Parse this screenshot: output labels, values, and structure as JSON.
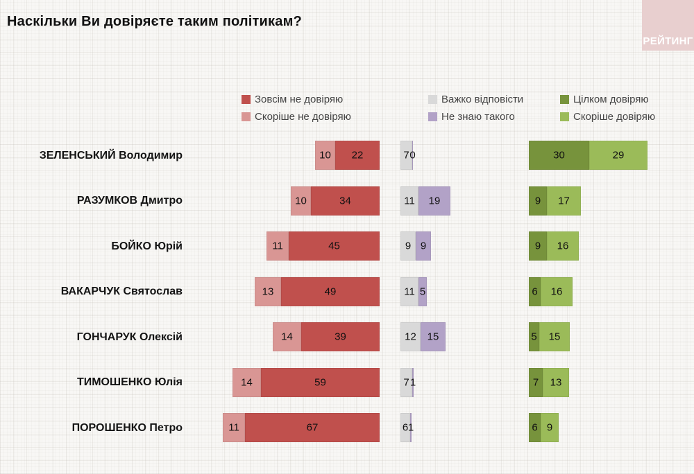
{
  "title": "Наскільки Ви довіряєте таким політикам?",
  "logo": {
    "text": "РЕЙТИНГ"
  },
  "colors": {
    "completely_distrust": "#c0504d",
    "rather_distrust": "#d99694",
    "hard_to_answer": "#d9d9d9",
    "dont_know": "#b2a2c7",
    "completely_trust": "#77933c",
    "rather_trust": "#9bbb59",
    "background": "#f8f7f5",
    "logo_box": "#e8cfcf"
  },
  "legend": {
    "columns": [
      [
        {
          "key": "completely-distrust",
          "label": "Зовсім не довіряю",
          "color": "#c0504d"
        },
        {
          "key": "rather-distrust",
          "label": "Скоріше не довіряю",
          "color": "#d99694"
        }
      ],
      [
        {
          "key": "hard-to-answer",
          "label": "Важко відповісти",
          "color": "#d9d9d9"
        },
        {
          "key": "dont-know",
          "label": "Не знаю такого",
          "color": "#b2a2c7"
        }
      ],
      [
        {
          "key": "completely-trust",
          "label": "Цілком довіряю",
          "color": "#77933c"
        },
        {
          "key": "rather-trust",
          "label": "Скоріше довіряю",
          "color": "#9bbb59"
        }
      ]
    ]
  },
  "chart_data": {
    "type": "bar",
    "orientation": "horizontal-diverging",
    "title": "Наскільки Ви довіряєте таким політикам?",
    "unit": "percent",
    "categories": [
      "ЗЕЛЕНСЬКИЙ Володимир",
      "РАЗУМКОВ Дмитро",
      "БОЙКО Юрій",
      "ВАКАРЧУК Святослав",
      "ГОНЧАРУК Олексій",
      "ТИМОШЕНКО Юлія",
      "ПОРОШЕНКО Петро"
    ],
    "series": [
      {
        "key": "rather-distrust",
        "name": "Скоріше не довіряю",
        "color": "#d99694",
        "group": "negative",
        "values": [
          10,
          10,
          11,
          13,
          14,
          14,
          11
        ]
      },
      {
        "key": "completely-distrust",
        "name": "Зовсім не довіряю",
        "color": "#c0504d",
        "group": "negative",
        "values": [
          22,
          34,
          45,
          49,
          39,
          59,
          67
        ]
      },
      {
        "key": "hard-to-answer",
        "name": "Важко відповісти",
        "color": "#d9d9d9",
        "group": "neutral",
        "values": [
          7,
          11,
          9,
          11,
          12,
          7,
          6
        ]
      },
      {
        "key": "dont-know",
        "name": "Не знаю такого",
        "color": "#b2a2c7",
        "group": "neutral",
        "values": [
          0,
          19,
          9,
          5,
          15,
          1,
          1
        ]
      },
      {
        "key": "completely-trust",
        "name": "Цілком довіряю",
        "color": "#77933c",
        "group": "positive",
        "values": [
          30,
          9,
          9,
          6,
          5,
          7,
          6
        ]
      },
      {
        "key": "rather-trust",
        "name": "Скоріше довіряю",
        "color": "#9bbb59",
        "group": "positive",
        "values": [
          29,
          17,
          16,
          16,
          15,
          13,
          9
        ]
      }
    ],
    "legend_position": "top",
    "grid": "paper-texture",
    "value_labels": "inside-center"
  }
}
